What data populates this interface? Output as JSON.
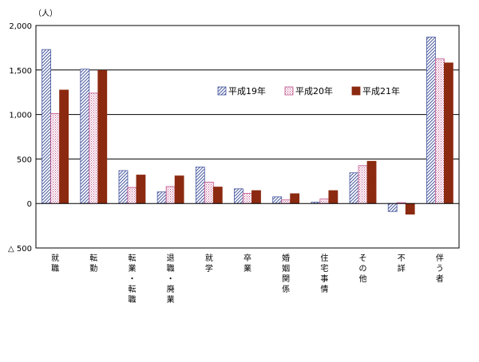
{
  "chart_data": {
    "type": "bar",
    "unit": "（人）",
    "categories": [
      "就職",
      "転勤",
      "転業・転職",
      "退職・廃業",
      "就学",
      "卒業",
      "婚姻関係",
      "住宅事情",
      "その他",
      "不詳",
      "伴う者"
    ],
    "series": [
      {
        "name": "平成19年",
        "pattern": "diagonal-hatch",
        "color": "#4a5aa0",
        "values": [
          1730,
          1510,
          370,
          130,
          410,
          165,
          75,
          15,
          345,
          -90,
          1870
        ]
      },
      {
        "name": "平成20年",
        "pattern": "dotted",
        "color": "#c0508a",
        "values": [
          1010,
          1240,
          180,
          190,
          240,
          115,
          40,
          50,
          425,
          10,
          1625
        ]
      },
      {
        "name": "平成21年",
        "pattern": "solid",
        "color": "#8b2a10",
        "values": [
          1275,
          1495,
          320,
          310,
          185,
          145,
          110,
          145,
          475,
          -120,
          1580
        ]
      }
    ],
    "ylim": [
      -500,
      2000
    ],
    "yticks": [
      {
        "value": 2000,
        "label": "2,000"
      },
      {
        "value": 1500,
        "label": "1,500"
      },
      {
        "value": 1000,
        "label": "1,000"
      },
      {
        "value": 500,
        "label": "500"
      },
      {
        "value": 0,
        "label": "0"
      },
      {
        "value": -500,
        "label": "△ 500"
      }
    ],
    "gridlines": true,
    "legend_position": "top-right"
  }
}
